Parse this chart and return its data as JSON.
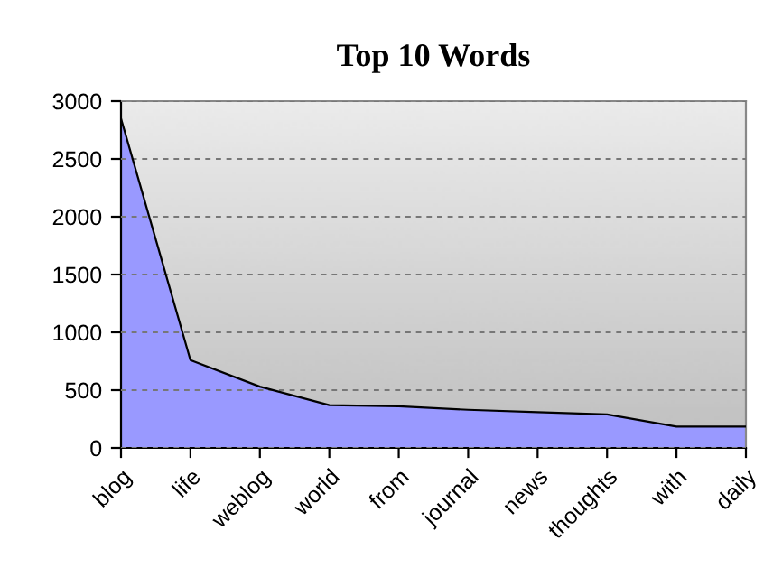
{
  "chart_data": {
    "type": "area",
    "title": "Top 10 Words",
    "categories": [
      "blog",
      "life",
      "weblog",
      "world",
      "from",
      "journal",
      "news",
      "thoughts",
      "with",
      "daily"
    ],
    "series": [
      {
        "color": "#9999ff",
        "values": [
          2850,
          760,
          530,
          370,
          360,
          330,
          310,
          290,
          185,
          185
        ]
      }
    ],
    "ylim": [
      0,
      3000
    ],
    "yticks": [
      0,
      500,
      1000,
      1500,
      2000,
      2500,
      3000
    ],
    "grid": "y",
    "legend": false
  }
}
